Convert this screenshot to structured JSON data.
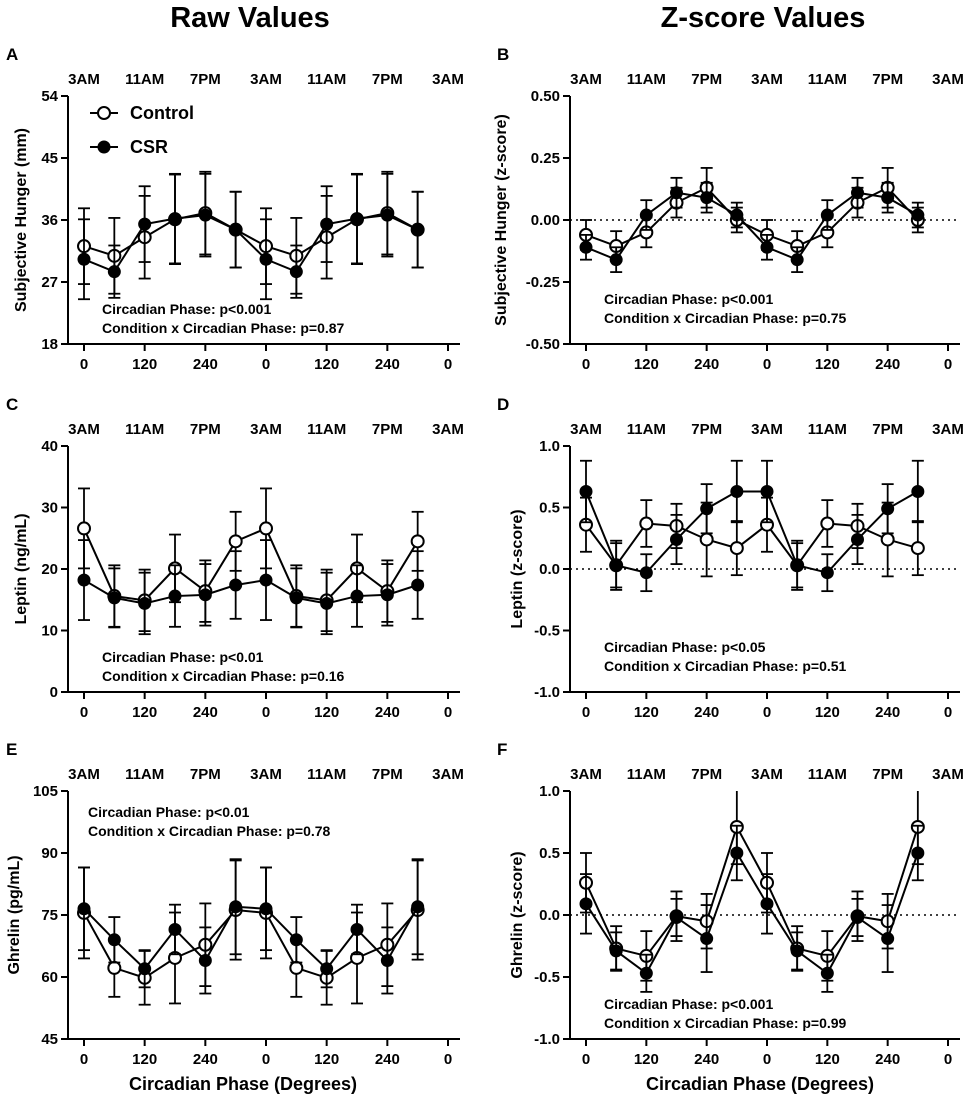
{
  "column_titles": [
    "Raw Values",
    "Z-score Values"
  ],
  "legend": {
    "control": "Control",
    "csr": "CSR"
  },
  "x_axis_label": "Circadian Phase (Degrees)",
  "chart_data": [
    {
      "id": "A",
      "panel": "A",
      "type": "line",
      "ylabel": "Subjective Hunger (mm)",
      "ylim": [
        18,
        54
      ],
      "yticks": [
        "18",
        "27",
        "36",
        "45",
        "54"
      ],
      "top_ticks": [
        "3AM",
        "11AM",
        "7PM",
        "3AM",
        "11AM",
        "7PM",
        "3AM"
      ],
      "bottom_ticks": [
        "0",
        "120",
        "240",
        "0",
        "120",
        "240",
        "0"
      ],
      "x": [
        0,
        60,
        120,
        180,
        240,
        300,
        360,
        420,
        480,
        540,
        600,
        660
      ],
      "xlim": [
        0,
        720
      ],
      "series": [
        {
          "name": "Control",
          "values": [
            32.2,
            30.8,
            33.5,
            36.1,
            37.0,
            34.6,
            32.2,
            30.8,
            33.5,
            36.1,
            37.0,
            34.6
          ],
          "err": [
            5.5,
            5.5,
            6.0,
            6.5,
            6.0,
            5.5,
            5.5,
            5.5,
            6.0,
            6.5,
            6.0,
            5.5
          ]
        },
        {
          "name": "CSR",
          "values": [
            30.3,
            28.5,
            35.4,
            36.2,
            36.7,
            34.6,
            30.3,
            28.5,
            35.4,
            36.2,
            36.7,
            34.6
          ],
          "err": [
            5.8,
            3.8,
            5.5,
            6.5,
            6.0,
            5.5,
            5.8,
            3.8,
            5.5,
            6.5,
            6.0,
            5.5
          ]
        }
      ],
      "zero_line": false,
      "ann_lines": [
        "Circadian Phase: p<0.001",
        "Condition x Circadian Phase: p=0.87"
      ],
      "ann_pos": "bottom-left",
      "show_legend": true
    },
    {
      "id": "B",
      "panel": "B",
      "type": "line",
      "ylabel": "Subjective Hunger (z-score)",
      "ylim": [
        -0.5,
        0.5
      ],
      "yticks": [
        "-0.50",
        "-0.25",
        "0.00",
        "0.25",
        "0.50"
      ],
      "top_ticks": [
        "3AM",
        "11AM",
        "7PM",
        "3AM",
        "11AM",
        "7PM",
        "3AM"
      ],
      "bottom_ticks": [
        "0",
        "120",
        "240",
        "0",
        "120",
        "240",
        "0"
      ],
      "x": [
        0,
        60,
        120,
        180,
        240,
        300,
        360,
        420,
        480,
        540,
        600,
        660
      ],
      "xlim": [
        0,
        720
      ],
      "series": [
        {
          "name": "Control",
          "values": [
            -0.06,
            -0.105,
            -0.05,
            0.07,
            0.13,
            0.0,
            -0.06,
            -0.105,
            -0.05,
            0.07,
            0.13,
            0.0
          ],
          "err": [
            0.06,
            0.06,
            0.06,
            0.06,
            0.08,
            0.05,
            0.06,
            0.06,
            0.06,
            0.06,
            0.08,
            0.05
          ]
        },
        {
          "name": "CSR",
          "values": [
            -0.11,
            -0.16,
            0.02,
            0.11,
            0.09,
            0.02,
            -0.11,
            -0.16,
            0.02,
            0.11,
            0.09,
            0.02
          ],
          "err": [
            0.05,
            0.05,
            0.06,
            0.06,
            0.06,
            0.05,
            0.05,
            0.05,
            0.06,
            0.06,
            0.06,
            0.05
          ]
        }
      ],
      "zero_line": true,
      "ann_lines": [
        "Circadian Phase: p<0.001",
        "Condition x Circadian Phase: p=0.75"
      ],
      "ann_pos": "bottom-center",
      "show_legend": false
    },
    {
      "id": "C",
      "panel": "C",
      "type": "line",
      "ylabel": "Leptin (ng/mL)",
      "ylim": [
        0,
        40
      ],
      "yticks": [
        "0",
        "10",
        "20",
        "30",
        "40"
      ],
      "top_ticks": [
        "3AM",
        "11AM",
        "7PM",
        "3AM",
        "11AM",
        "7PM",
        "3AM"
      ],
      "bottom_ticks": [
        "0",
        "120",
        "240",
        "0",
        "120",
        "240",
        "0"
      ],
      "x": [
        0,
        60,
        120,
        180,
        240,
        300,
        360,
        420,
        480,
        540,
        600,
        660
      ],
      "xlim": [
        0,
        720
      ],
      "series": [
        {
          "name": "Control",
          "values": [
            26.6,
            15.6,
            14.9,
            20.1,
            16.4,
            24.5,
            26.6,
            15.6,
            14.9,
            20.1,
            16.4,
            24.5
          ],
          "err": [
            6.5,
            5.0,
            5.0,
            5.5,
            5.0,
            4.8,
            6.5,
            5.0,
            5.0,
            5.5,
            5.0,
            4.8
          ]
        },
        {
          "name": "CSR",
          "values": [
            18.2,
            15.3,
            14.4,
            15.6,
            15.8,
            17.4,
            18.2,
            15.3,
            14.4,
            15.6,
            15.8,
            17.4
          ],
          "err": [
            6.5,
            4.8,
            5.0,
            5.0,
            5.0,
            5.5,
            6.5,
            4.8,
            5.0,
            5.0,
            5.0,
            5.5
          ]
        }
      ],
      "zero_line": false,
      "ann_lines": [
        "Circadian Phase: p<0.01",
        "Condition x Circadian Phase: p=0.16"
      ],
      "ann_pos": "bottom-left",
      "show_legend": false
    },
    {
      "id": "D",
      "panel": "D",
      "type": "line",
      "ylabel": "Leptin (z-score)",
      "ylim": [
        -1.0,
        1.0
      ],
      "yticks": [
        "-1.0",
        "-0.5",
        "0.0",
        "0.5",
        "1.0"
      ],
      "top_ticks": [
        "3AM",
        "11AM",
        "7PM",
        "3AM",
        "11AM",
        "7PM",
        "3AM"
      ],
      "bottom_ticks": [
        "0",
        "120",
        "240",
        "0",
        "120",
        "240",
        "0"
      ],
      "x": [
        0,
        60,
        120,
        180,
        240,
        300,
        360,
        420,
        480,
        540,
        600,
        660
      ],
      "xlim": [
        0,
        720
      ],
      "series": [
        {
          "name": "Control",
          "values": [
            0.36,
            0.03,
            0.37,
            0.35,
            0.24,
            0.17,
            0.36,
            0.03,
            0.37,
            0.35,
            0.24,
            0.17
          ],
          "err": [
            0.22,
            0.2,
            0.19,
            0.18,
            0.3,
            0.22,
            0.22,
            0.2,
            0.19,
            0.18,
            0.3,
            0.22
          ]
        },
        {
          "name": "CSR",
          "values": [
            0.63,
            0.03,
            -0.03,
            0.24,
            0.49,
            0.63,
            0.63,
            0.03,
            -0.03,
            0.24,
            0.49,
            0.63
          ],
          "err": [
            0.25,
            0.18,
            0.15,
            0.2,
            0.2,
            0.25,
            0.25,
            0.18,
            0.15,
            0.2,
            0.2,
            0.25
          ]
        }
      ],
      "zero_line": true,
      "ann_lines": [
        "Circadian Phase: p<0.05",
        "Condition x Circadian Phase: p=0.51"
      ],
      "ann_pos": "bottom-center",
      "show_legend": false
    },
    {
      "id": "E",
      "panel": "E",
      "type": "line",
      "ylabel": "Ghrelin (pg/mL)",
      "ylim": [
        45,
        105
      ],
      "yticks": [
        "45",
        "60",
        "75",
        "90",
        "105"
      ],
      "top_ticks": [
        "3AM",
        "11AM",
        "7PM",
        "3AM",
        "11AM",
        "7PM",
        "3AM"
      ],
      "bottom_ticks": [
        "0",
        "120",
        "240",
        "0",
        "120",
        "240",
        "0"
      ],
      "x": [
        0,
        60,
        120,
        180,
        240,
        300,
        360,
        420,
        480,
        540,
        600,
        660
      ],
      "xlim": [
        0,
        720
      ],
      "series": [
        {
          "name": "Control",
          "values": [
            75.5,
            62.2,
            59.8,
            64.6,
            67.8,
            76.2,
            75.5,
            62.2,
            59.8,
            64.6,
            67.8,
            76.2
          ],
          "err": [
            11.0,
            7.0,
            6.5,
            11.0,
            10.0,
            12.0,
            11.0,
            7.0,
            6.5,
            11.0,
            10.0,
            12.0
          ]
        },
        {
          "name": "CSR",
          "values": [
            76.5,
            69.0,
            62.0,
            71.5,
            64.0,
            77.0,
            76.5,
            69.0,
            62.0,
            71.5,
            64.0,
            77.0
          ],
          "err": [
            10.0,
            5.5,
            4.5,
            6.0,
            8.0,
            11.5,
            10.0,
            5.5,
            4.5,
            6.0,
            8.0,
            11.5
          ]
        }
      ],
      "zero_line": false,
      "ann_lines": [
        "Circadian Phase: p<0.01",
        "Condition x Circadian Phase: p=0.78"
      ],
      "ann_pos": "top-left",
      "show_legend": false
    },
    {
      "id": "F",
      "panel": "F",
      "type": "line",
      "ylabel": "Ghrelin (z-score)",
      "ylim": [
        -1.0,
        1.0
      ],
      "yticks": [
        "-1.0",
        "-0.5",
        "0.0",
        "0.5",
        "1.0"
      ],
      "top_ticks": [
        "3AM",
        "11AM",
        "7PM",
        "3AM",
        "11AM",
        "7PM",
        "3AM"
      ],
      "bottom_ticks": [
        "0",
        "120",
        "240",
        "0",
        "120",
        "240",
        "0"
      ],
      "x": [
        0,
        60,
        120,
        180,
        240,
        300,
        360,
        420,
        480,
        540,
        600,
        660
      ],
      "xlim": [
        0,
        720
      ],
      "series": [
        {
          "name": "Control",
          "values": [
            0.26,
            -0.27,
            -0.33,
            -0.01,
            -0.05,
            0.71,
            0.26,
            -0.27,
            -0.33,
            -0.01,
            -0.05,
            0.71
          ],
          "err": [
            0.24,
            0.18,
            0.2,
            0.2,
            0.22,
            0.3,
            0.24,
            0.18,
            0.2,
            0.2,
            0.22,
            0.3
          ]
        },
        {
          "name": "CSR",
          "values": [
            0.09,
            -0.29,
            -0.47,
            -0.02,
            -0.19,
            0.5,
            0.09,
            -0.29,
            -0.47,
            -0.02,
            -0.19,
            0.5
          ],
          "err": [
            0.24,
            0.15,
            0.15,
            0.15,
            0.27,
            0.22,
            0.24,
            0.15,
            0.15,
            0.15,
            0.27,
            0.22
          ]
        }
      ],
      "zero_line": true,
      "ann_lines": [
        "Circadian Phase: p<0.001",
        "Condition x Circadian Phase: p=0.99"
      ],
      "ann_pos": "bottom-left",
      "show_legend": false
    }
  ]
}
